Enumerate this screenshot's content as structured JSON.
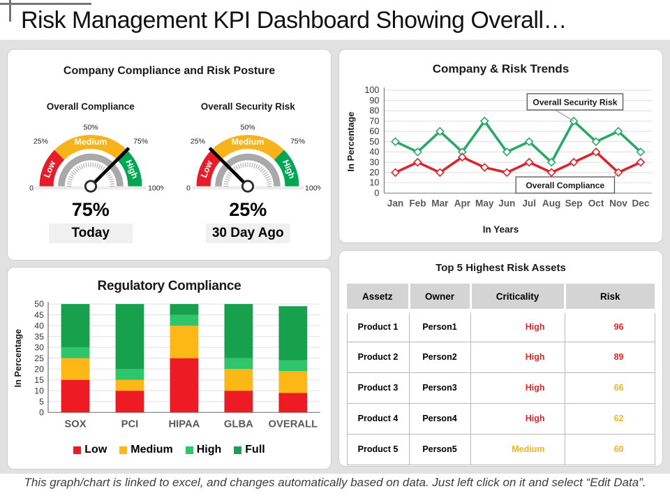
{
  "page": {
    "title": "Risk Management KPI Dashboard Showing Overall…",
    "footer": "This graph/chart is linked to excel, and changes automatically based on data. Just left click on it and select “Edit Data”."
  },
  "panels": {
    "posture": {
      "title": "Company Compliance and Risk Posture"
    }
  },
  "colors": {
    "red": "#e81b2a",
    "yellow": "#f8b31b",
    "green": "#00a651",
    "light_green": "#2ec56b",
    "dark_green": "#17a14c",
    "line_green": "#2aa867",
    "line_red": "#d9262e"
  },
  "chart_data": [
    {
      "type": "gauge",
      "title": "Overall Compliance",
      "value": 75,
      "value_label": "75%",
      "caption": "Today",
      "scale_ticks": [
        "0",
        "25%",
        "50%",
        "75%",
        "100%"
      ],
      "zones": [
        {
          "label": "Low",
          "from": 0,
          "to": 25,
          "color": "#e81b2a"
        },
        {
          "label": "Medium",
          "from": 25,
          "to": 75,
          "color": "#f8b31b"
        },
        {
          "label": "High",
          "from": 75,
          "to": 100,
          "color": "#00a651"
        }
      ]
    },
    {
      "type": "gauge",
      "title": "Overall Security Risk",
      "value": 25,
      "value_label": "25%",
      "caption": "30 Day Ago",
      "scale_ticks": [
        "0",
        "25%",
        "50%",
        "75%",
        "100%"
      ],
      "zones": [
        {
          "label": "Low",
          "from": 0,
          "to": 25,
          "color": "#e81b2a"
        },
        {
          "label": "Medium",
          "from": 25,
          "to": 75,
          "color": "#f8b31b"
        },
        {
          "label": "High",
          "from": 75,
          "to": 100,
          "color": "#00a651"
        }
      ]
    },
    {
      "type": "line",
      "title": "Company & Risk Trends",
      "xlabel": "In Years",
      "ylabel": "In Percentage",
      "ylim": [
        0,
        100
      ],
      "ytick": 10,
      "grid": true,
      "categories": [
        "Jan",
        "Feb",
        "Mar",
        "Apr",
        "May",
        "Jun",
        "Jul",
        "Aug",
        "Sep",
        "Oct",
        "Nov",
        "Dec"
      ],
      "series": [
        {
          "name": "Overall Security Risk",
          "color": "#2aa867",
          "values": [
            50,
            40,
            60,
            40,
            70,
            40,
            50,
            30,
            70,
            50,
            60,
            40
          ]
        },
        {
          "name": "Overall Compliance",
          "color": "#d9262e",
          "values": [
            20,
            30,
            20,
            35,
            25,
            20,
            30,
            20,
            30,
            40,
            20,
            30
          ]
        }
      ],
      "annotations": [
        {
          "text": "Overall Security Risk",
          "series": 0,
          "point": 8
        },
        {
          "text": "Overall Compliance",
          "series": 1,
          "point": 10
        }
      ]
    },
    {
      "type": "stacked_bar",
      "title": "Regulatory Compliance",
      "ylabel": "In Percentage",
      "ylim": [
        0,
        50
      ],
      "ytick": 5,
      "grid": true,
      "legend_position": "bottom",
      "categories": [
        "SOX",
        "PCI",
        "HIPAA",
        "GLBA",
        "OVERALL"
      ],
      "series": [
        {
          "name": "Low",
          "color": "#ed1b24",
          "values": [
            15,
            10,
            25,
            10,
            9
          ]
        },
        {
          "name": "Medium",
          "color": "#fdb817",
          "values": [
            10,
            5,
            15,
            10,
            10
          ]
        },
        {
          "name": "High",
          "color": "#2ec56b",
          "values": [
            5,
            5,
            5,
            5,
            5
          ]
        },
        {
          "name": "Full",
          "color": "#17a14c",
          "values": [
            20,
            30,
            5,
            25,
            25
          ]
        }
      ]
    },
    {
      "type": "table",
      "title": "Top 5 Highest Risk Assets",
      "headers": [
        "Assetz",
        "Owner",
        "Criticality",
        "Risk"
      ],
      "rows": [
        {
          "asset": "Product 1",
          "owner": "Person1",
          "criticality": "High",
          "criticality_color": "red",
          "risk": "96",
          "risk_color": "red"
        },
        {
          "asset": "Product 2",
          "owner": "Person2",
          "criticality": "High",
          "criticality_color": "red",
          "risk": "89",
          "risk_color": "red"
        },
        {
          "asset": "Product 3",
          "owner": "Person3",
          "criticality": "High",
          "criticality_color": "red",
          "risk": "66",
          "risk_color": "yellow"
        },
        {
          "asset": "Product 4",
          "owner": "Person4",
          "criticality": "High",
          "criticality_color": "red",
          "risk": "62",
          "risk_color": "yellow"
        },
        {
          "asset": "Product 5",
          "owner": "Person5",
          "criticality": "Medium",
          "criticality_color": "yellow",
          "risk": "60",
          "risk_color": "yellow"
        }
      ]
    }
  ]
}
